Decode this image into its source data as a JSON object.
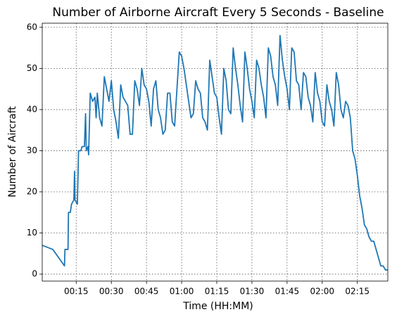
{
  "chart_data": {
    "type": "line",
    "title": "Number of Airborne Aircraft Every 5 Seconds - Baseline",
    "xlabel": "Time (HH:MM)",
    "ylabel": "Number of Aircraft",
    "color": "#1f77b4",
    "grid": true,
    "x": [
      0.5,
      5,
      10,
      10.2,
      11.5,
      11.7,
      12.5,
      13,
      14,
      14.3,
      14.5,
      15.5,
      16,
      17,
      17.5,
      18.5,
      19,
      19.3,
      20,
      20.3,
      21,
      22,
      23,
      23.5,
      24,
      25,
      26,
      27,
      28,
      29,
      30,
      31,
      32,
      33,
      34,
      35,
      36,
      37,
      38,
      39,
      40,
      41,
      42,
      43,
      44,
      45,
      46,
      47,
      48,
      49,
      50,
      51,
      52,
      53,
      54,
      55,
      56,
      57,
      58,
      59,
      60,
      61,
      62,
      63,
      64,
      65,
      66,
      67,
      68,
      69,
      70,
      71,
      72,
      73,
      74,
      75,
      76,
      77,
      78,
      79,
      80,
      81,
      82,
      83,
      84,
      85,
      86,
      87,
      88,
      89,
      90,
      91,
      92,
      93,
      94,
      95,
      96,
      97,
      98,
      99,
      100,
      101,
      102,
      103,
      104,
      105,
      106,
      107,
      108,
      109,
      110,
      111,
      112,
      113,
      114,
      115,
      116,
      117,
      118,
      119,
      120,
      121,
      122,
      123,
      124,
      125,
      126,
      127,
      128,
      129,
      130,
      131,
      132,
      133,
      134,
      135,
      136,
      137,
      138,
      139,
      140,
      141,
      142,
      143,
      144,
      145,
      146,
      147,
      148
    ],
    "values": [
      7,
      6,
      2,
      6,
      6,
      15,
      15,
      17,
      18,
      25,
      18,
      17,
      30,
      30,
      31,
      31,
      39,
      30,
      31,
      29,
      44,
      42,
      43,
      38,
      44,
      38,
      36,
      48,
      45,
      42,
      47,
      40,
      37,
      33,
      46,
      43,
      42,
      41,
      34,
      34,
      47,
      45,
      41,
      50,
      46,
      45,
      42,
      36,
      45,
      47,
      40,
      38,
      34,
      35,
      44,
      44,
      37,
      36,
      45,
      54,
      53,
      50,
      46,
      42,
      38,
      39,
      47,
      45,
      44,
      38,
      37,
      35,
      52,
      48,
      44,
      43,
      38,
      34,
      50,
      47,
      40,
      39,
      55,
      50,
      46,
      41,
      37,
      54,
      50,
      45,
      42,
      38,
      52,
      50,
      46,
      43,
      38,
      55,
      53,
      48,
      46,
      41,
      58,
      52,
      48,
      45,
      40,
      55,
      54,
      47,
      46,
      40,
      49,
      48,
      43,
      41,
      37,
      49,
      44,
      42,
      37,
      36,
      46,
      42,
      40,
      36,
      49,
      46,
      40,
      38,
      42,
      41,
      38,
      30,
      28,
      24,
      19,
      16,
      12,
      11,
      9,
      8,
      8,
      6,
      4,
      2,
      2,
      1,
      1
    ],
    "xlim": [
      0.5,
      148
    ],
    "xticks": [
      {
        "value": 15,
        "label": "00:15"
      },
      {
        "value": 30,
        "label": "00:30"
      },
      {
        "value": 45,
        "label": "00:45"
      },
      {
        "value": 60,
        "label": "01:00"
      },
      {
        "value": 75,
        "label": "01:15"
      },
      {
        "value": 90,
        "label": "01:30"
      },
      {
        "value": 105,
        "label": "01:45"
      },
      {
        "value": 120,
        "label": "02:00"
      },
      {
        "value": 135,
        "label": "02:15"
      }
    ],
    "ylim": [
      -1.7,
      61
    ],
    "yticks": [
      0,
      10,
      20,
      30,
      40,
      50,
      60
    ]
  }
}
